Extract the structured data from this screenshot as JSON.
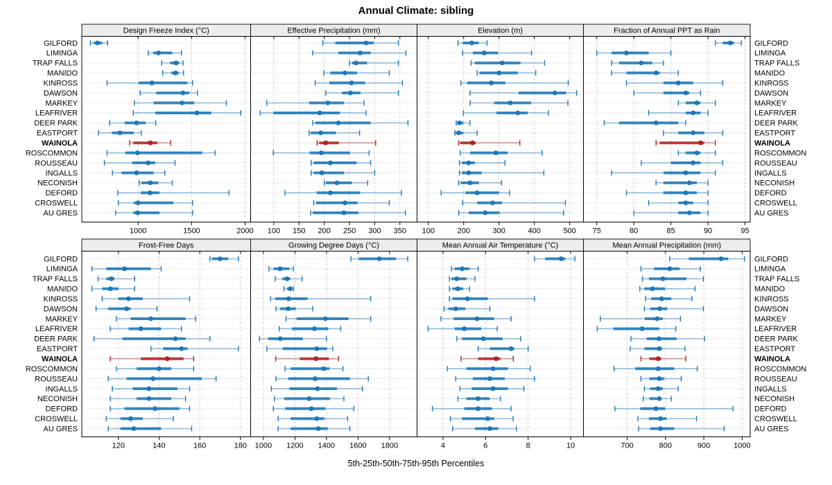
{
  "title": "Annual Climate: sibling",
  "caption": "5th-25th-50th-75th-95th Percentiles",
  "highlight_station": "WAINOLA",
  "colors": {
    "series_blue": "#1F77B4",
    "highlight_red": "#B22222",
    "gridline": "#C9C9C9",
    "row_guide": "#CDCDCD",
    "strip_bg": "#ECECEC",
    "panel_border": "#000000",
    "text": "#000000",
    "background": "#FFFFFF"
  },
  "chart_data": {
    "type": "scatter",
    "subtype": "trellis-dotplot-percentile-intervals",
    "percentiles": [
      "5th",
      "25th",
      "50th",
      "75th",
      "95th"
    ],
    "layout": {
      "panel_grid": "2 rows x 4 cols",
      "vertical_gridlines": "dashed at each x tick",
      "row_guides": "dotted per station",
      "station_labels": "both left and right sides",
      "legend": "none"
    },
    "stations": [
      "GILFORD",
      "LIMINGA",
      "TRAP FALLS",
      "MANIDO",
      "KINROSS",
      "DAWSON",
      "MARKEY",
      "LEAFRIVER",
      "DEER PARK",
      "EASTPORT",
      "WAINOLA",
      "ROSCOMMON",
      "ROUSSEAU",
      "INGALLS",
      "NECONISH",
      "DEFORD",
      "CROSWELL",
      "AU GRES"
    ],
    "panels": [
      {
        "title": "Design Freeze Index (°C)",
        "xlim": [
          474,
          2052
        ],
        "xticks": [
          1000,
          1500,
          2000
        ],
        "rows": [
          [
            555,
            585,
            620,
            665,
            715
          ],
          [
            1095,
            1140,
            1190,
            1320,
            1405
          ],
          [
            1220,
            1300,
            1355,
            1385,
            1420
          ],
          [
            1230,
            1310,
            1350,
            1380,
            1425
          ],
          [
            710,
            1005,
            1130,
            1460,
            1510
          ],
          [
            1020,
            1170,
            1420,
            1480,
            1555
          ],
          [
            965,
            1145,
            1410,
            1525,
            1825
          ],
          [
            955,
            1160,
            1550,
            1685,
            1960
          ],
          [
            735,
            875,
            985,
            1070,
            1165
          ],
          [
            630,
            755,
            830,
            960,
            1030
          ],
          [
            920,
            955,
            1115,
            1180,
            1305
          ],
          [
            710,
            880,
            995,
            1600,
            1720
          ],
          [
            685,
            945,
            1095,
            1160,
            1345
          ],
          [
            760,
            845,
            985,
            1145,
            1250
          ],
          [
            1010,
            1030,
            1115,
            1190,
            1320
          ],
          [
            810,
            1025,
            1110,
            1200,
            1850
          ],
          [
            815,
            960,
            1000,
            1330,
            1510
          ],
          [
            790,
            955,
            995,
            1200,
            1510
          ]
        ]
      },
      {
        "title": "Effective Precipitation (mm)",
        "xlim": [
          54,
          384
        ],
        "xticks": [
          100,
          150,
          200,
          250,
          300,
          350
        ],
        "rows": [
          [
            197,
            222,
            283,
            298,
            347
          ],
          [
            177,
            228,
            271,
            292,
            362
          ],
          [
            250,
            255,
            263,
            285,
            347
          ],
          [
            199,
            212,
            241,
            265,
            329
          ],
          [
            182,
            210,
            254,
            281,
            355
          ],
          [
            203,
            235,
            252,
            272,
            347
          ],
          [
            86,
            170,
            207,
            239,
            279
          ],
          [
            73,
            99,
            191,
            231,
            283
          ],
          [
            177,
            182,
            228,
            292,
            366
          ],
          [
            170,
            173,
            193,
            223,
            270
          ],
          [
            186,
            190,
            203,
            229,
            302
          ],
          [
            99,
            171,
            194,
            251,
            289
          ],
          [
            174,
            179,
            212,
            264,
            292
          ],
          [
            174,
            179,
            195,
            239,
            300
          ],
          [
            200,
            203,
            225,
            255,
            286
          ],
          [
            122,
            185,
            212,
            271,
            353
          ],
          [
            179,
            184,
            241,
            266,
            329
          ],
          [
            173,
            177,
            239,
            268,
            361
          ]
        ]
      },
      {
        "title": "Elevation (m)",
        "xlim": [
          68,
          539
        ],
        "xticks": [
          100,
          200,
          300,
          400,
          500
        ],
        "rows": [
          [
            184,
            197,
            223,
            243,
            266
          ],
          [
            197,
            226,
            258,
            297,
            392
          ],
          [
            221,
            232,
            309,
            361,
            429
          ],
          [
            238,
            245,
            300,
            353,
            404
          ],
          [
            192,
            210,
            278,
            318,
            496
          ],
          [
            218,
            355,
            458,
            490,
            520
          ],
          [
            218,
            286,
            332,
            391,
            495
          ],
          [
            199,
            293,
            353,
            381,
            440
          ],
          [
            179,
            182,
            188,
            199,
            218
          ],
          [
            175,
            177,
            186,
            199,
            238
          ],
          [
            186,
            190,
            225,
            234,
            359
          ],
          [
            190,
            218,
            291,
            324,
            422
          ],
          [
            188,
            195,
            214,
            232,
            317
          ],
          [
            188,
            195,
            214,
            251,
            427
          ],
          [
            186,
            192,
            218,
            243,
            307
          ],
          [
            136,
            205,
            238,
            300,
            330
          ],
          [
            197,
            238,
            282,
            309,
            488
          ],
          [
            186,
            214,
            261,
            302,
            483
          ]
        ]
      },
      {
        "title": "Fraction of Annual PPT as Rain",
        "xlim": [
          73.2,
          95.7
        ],
        "xticks": [
          75,
          80,
          85,
          90,
          95
        ],
        "rows": [
          [
            91,
            92,
            93,
            93.5,
            94.5
          ],
          [
            75,
            77,
            79,
            82,
            85
          ],
          [
            77,
            78,
            81,
            82.5,
            84
          ],
          [
            77,
            79,
            83,
            83.5,
            86
          ],
          [
            79,
            84,
            86,
            88,
            92
          ],
          [
            80,
            84,
            87,
            87.5,
            89
          ],
          [
            86,
            87,
            88.5,
            89,
            91
          ],
          [
            82,
            87,
            88,
            89,
            90
          ],
          [
            76,
            78,
            83,
            86,
            87
          ],
          [
            84,
            86,
            88,
            89.5,
            92
          ],
          [
            83,
            83.5,
            89,
            89.5,
            91
          ],
          [
            86,
            87,
            88.5,
            89,
            91
          ],
          [
            81,
            85,
            88,
            89,
            92
          ],
          [
            77,
            84,
            87,
            89,
            91
          ],
          [
            83,
            84,
            87.5,
            88.5,
            90
          ],
          [
            79,
            84,
            87,
            88.5,
            90
          ],
          [
            82,
            86,
            87,
            88,
            90
          ],
          [
            80,
            86,
            87.5,
            89,
            90
          ]
        ]
      },
      {
        "title": "Frost-Free Days",
        "xlim": [
          102,
          185
        ],
        "xticks": [
          120,
          140,
          160,
          180
        ],
        "rows": [
          [
            165,
            166,
            170,
            174,
            179
          ],
          [
            107,
            114,
            123,
            136,
            141
          ],
          [
            110,
            114,
            116.5,
            118,
            128
          ],
          [
            107,
            112,
            116,
            120,
            128
          ],
          [
            112,
            120,
            125,
            132,
            155
          ],
          [
            109,
            115,
            124,
            126,
            139
          ],
          [
            119,
            126,
            136,
            153,
            158
          ],
          [
            116,
            125,
            131,
            141,
            151
          ],
          [
            108,
            122,
            148,
            153,
            165
          ],
          [
            136,
            142,
            151,
            154,
            179
          ],
          [
            116,
            131,
            144,
            152,
            157
          ],
          [
            119,
            129,
            140,
            146,
            157
          ],
          [
            115,
            124,
            137,
            161,
            168
          ],
          [
            117,
            127,
            135,
            149,
            155
          ],
          [
            116,
            129,
            135,
            146,
            153
          ],
          [
            116,
            123,
            138,
            150,
            155
          ],
          [
            114,
            121,
            126,
            132,
            147
          ],
          [
            115,
            121,
            127.5,
            141,
            156
          ]
        ]
      },
      {
        "title": "Growing Degree Days (°C)",
        "xlim": [
          919,
          1974
        ],
        "xticks": [
          1000,
          1200,
          1400,
          1600,
          1800
        ],
        "rows": [
          [
            1555,
            1605,
            1735,
            1840,
            1915
          ],
          [
            1035,
            1065,
            1105,
            1165,
            1190
          ],
          [
            1075,
            1120,
            1150,
            1170,
            1245
          ],
          [
            1130,
            1150,
            1170,
            1180,
            1190
          ],
          [
            1045,
            1075,
            1160,
            1280,
            1680
          ],
          [
            1080,
            1105,
            1157,
            1205,
            1313
          ],
          [
            1143,
            1210,
            1393,
            1540,
            1680
          ],
          [
            1100,
            1180,
            1323,
            1412,
            1490
          ],
          [
            975,
            1030,
            1107,
            1250,
            1400
          ],
          [
            1022,
            1122,
            1338,
            1403,
            1440
          ],
          [
            1078,
            1230,
            1333,
            1415,
            1476
          ],
          [
            1137,
            1172,
            1382,
            1419,
            1504
          ],
          [
            1080,
            1157,
            1328,
            1548,
            1665
          ],
          [
            1050,
            1166,
            1343,
            1466,
            1628
          ],
          [
            1070,
            1132,
            1290,
            1422,
            1510
          ],
          [
            1063,
            1137,
            1304,
            1393,
            1573
          ],
          [
            1093,
            1172,
            1338,
            1387,
            1534
          ],
          [
            1093,
            1172,
            1348,
            1407,
            1548
          ]
        ]
      },
      {
        "title": "Mean Annual Air Temperature (°C)",
        "xlim": [
          2.78,
          10.6
        ],
        "xticks": [
          4,
          6,
          8,
          10
        ],
        "rows": [
          [
            8.3,
            8.8,
            9.55,
            9.75,
            10.2
          ],
          [
            4.4,
            4.55,
            4.9,
            5.25,
            5.65
          ],
          [
            4.3,
            4.4,
            4.65,
            5.1,
            5.5
          ],
          [
            4.3,
            4.45,
            4.7,
            4.95,
            5.25
          ],
          [
            4.3,
            4.45,
            5.15,
            6.1,
            8.3
          ],
          [
            4.05,
            4.25,
            4.6,
            5.05,
            6.2
          ],
          [
            3.9,
            4.5,
            5.6,
            6.4,
            7.2
          ],
          [
            3.3,
            4.55,
            5.0,
            5.8,
            6.55
          ],
          [
            4.65,
            4.9,
            5.9,
            6.8,
            7.65
          ],
          [
            5.65,
            6.2,
            7.2,
            7.35,
            8.0
          ],
          [
            4.85,
            5.65,
            6.5,
            6.7,
            7.3
          ],
          [
            4.2,
            5.1,
            6.35,
            7.05,
            8.1
          ],
          [
            4.6,
            5.4,
            6.2,
            6.9,
            8.3
          ],
          [
            4.8,
            5.35,
            6.35,
            7.05,
            7.8
          ],
          [
            4.7,
            5.1,
            5.65,
            6.2,
            6.7
          ],
          [
            3.5,
            5.0,
            5.65,
            6.3,
            7.2
          ],
          [
            4.35,
            4.9,
            6.1,
            6.4,
            7.3
          ],
          [
            4.45,
            5.5,
            6.2,
            6.6,
            7.45
          ]
        ]
      },
      {
        "title": "Mean Annual Precipitation (mm)",
        "xlim": [
          586,
          1021
        ],
        "xticks": [
          700,
          800,
          900,
          1000
        ],
        "rows": [
          [
            811,
            861,
            945,
            964,
            1006
          ],
          [
            736,
            770,
            811,
            837,
            891
          ],
          [
            740,
            757,
            793,
            855,
            899
          ],
          [
            733,
            745,
            766,
            799,
            877
          ],
          [
            748,
            763,
            790,
            815,
            869
          ],
          [
            745,
            760,
            785,
            805,
            899
          ],
          [
            630,
            746,
            778,
            793,
            839
          ],
          [
            622,
            664,
            739,
            784,
            827
          ],
          [
            710,
            751,
            783,
            829,
            902
          ],
          [
            708,
            745,
            784,
            791,
            851
          ],
          [
            736,
            758,
            781,
            789,
            853
          ],
          [
            666,
            721,
            781,
            823,
            883
          ],
          [
            736,
            758,
            784,
            797,
            841
          ],
          [
            745,
            760,
            781,
            793,
            833
          ],
          [
            742,
            758,
            784,
            789,
            815
          ],
          [
            668,
            734,
            775,
            799,
            976
          ],
          [
            728,
            757,
            787,
            803,
            881
          ],
          [
            730,
            760,
            787,
            823,
            953
          ]
        ]
      }
    ]
  }
}
